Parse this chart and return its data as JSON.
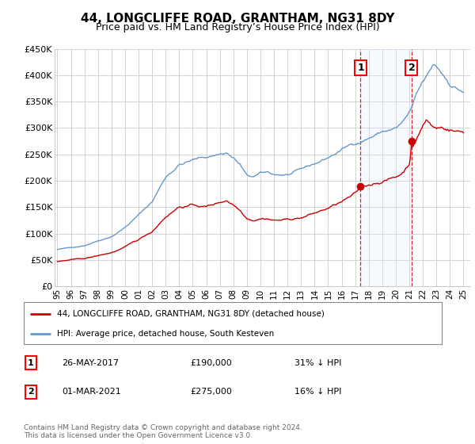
{
  "title": "44, LONGCLIFFE ROAD, GRANTHAM, NG31 8DY",
  "subtitle": "Price paid vs. HM Land Registry’s House Price Index (HPI)",
  "ylabel_ticks": [
    "£0",
    "£50K",
    "£100K",
    "£150K",
    "£200K",
    "£250K",
    "£300K",
    "£350K",
    "£400K",
    "£450K"
  ],
  "ylim": [
    0,
    450000
  ],
  "xlim_start": 1994.8,
  "xlim_end": 2025.5,
  "transaction1_date": "26-MAY-2017",
  "transaction1_price": 190000,
  "transaction1_label": "31% ↓ HPI",
  "transaction1_year": 2017.4,
  "transaction2_date": "01-MAR-2021",
  "transaction2_price": 275000,
  "transaction2_label": "16% ↓ HPI",
  "transaction2_year": 2021.17,
  "legend_label_red": "44, LONGCLIFFE ROAD, GRANTHAM, NG31 8DY (detached house)",
  "legend_label_blue": "HPI: Average price, detached house, South Kesteven",
  "footer": "Contains HM Land Registry data © Crown copyright and database right 2024.\nThis data is licensed under the Open Government Licence v3.0.",
  "red_color": "#cc0000",
  "blue_color": "#6699cc",
  "shade_color": "#ddeeff",
  "bg_color": "#ffffff",
  "grid_color": "#cccccc"
}
